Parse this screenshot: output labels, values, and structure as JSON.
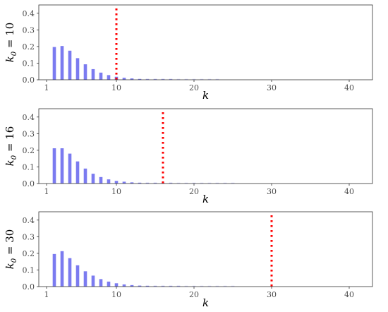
{
  "chart_data": [
    {
      "type": "bar",
      "ylabel": "k0 = 10",
      "ylabel_base": "k",
      "ylabel_sub": "0",
      "ylabel_rest": " = 10",
      "xlabel": "k",
      "xlim": [
        0,
        43
      ],
      "ylim": [
        0,
        0.45
      ],
      "xticks": [
        1,
        10,
        20,
        30,
        40
      ],
      "yticks": [
        0.0,
        0.1,
        0.2,
        0.3,
        0.4
      ],
      "ytick_labels": [
        "0.0",
        "0.1",
        "0.2",
        "0.3",
        "0.4"
      ],
      "cutoff_k": 10,
      "bar_color": "#7b7bf0",
      "cutoff_color": "#ff0000",
      "x": [
        2,
        3,
        4,
        5,
        6,
        7,
        8,
        9,
        10,
        11,
        12,
        13,
        14,
        15,
        16,
        17,
        18,
        19,
        20,
        21,
        22,
        23
      ],
      "values": [
        0.197,
        0.203,
        0.175,
        0.13,
        0.093,
        0.064,
        0.043,
        0.028,
        0.018,
        0.012,
        0.008,
        0.005,
        0.003,
        0.002,
        0.0015,
        0.001,
        0.0007,
        0.0005,
        0.0003,
        0.0002,
        0.00015,
        0.0001
      ],
      "grid": false
    },
    {
      "type": "bar",
      "ylabel": "k0 = 16",
      "ylabel_base": "k",
      "ylabel_sub": "0",
      "ylabel_rest": " = 16",
      "xlabel": "k",
      "xlim": [
        0,
        43
      ],
      "ylim": [
        0,
        0.45
      ],
      "xticks": [
        1,
        10,
        20,
        30,
        40
      ],
      "yticks": [
        0.0,
        0.1,
        0.2,
        0.3,
        0.4
      ],
      "ytick_labels": [
        "0.0",
        "0.1",
        "0.2",
        "0.3",
        "0.4"
      ],
      "cutoff_k": 16,
      "bar_color": "#7b7bf0",
      "cutoff_color": "#ff0000",
      "x": [
        2,
        3,
        4,
        5,
        6,
        7,
        8,
        9,
        10,
        11,
        12,
        13,
        14,
        15,
        16,
        17,
        18,
        19,
        20,
        21,
        22,
        23,
        24,
        25
      ],
      "values": [
        0.212,
        0.212,
        0.18,
        0.133,
        0.09,
        0.059,
        0.039,
        0.025,
        0.016,
        0.011,
        0.007,
        0.005,
        0.003,
        0.002,
        0.0015,
        0.001,
        0.0008,
        0.0006,
        0.0004,
        0.0003,
        0.0002,
        0.00015,
        0.0001,
        0.0001
      ],
      "grid": false
    },
    {
      "type": "bar",
      "ylabel": "k0 = 30",
      "ylabel_base": "k",
      "ylabel_sub": "0",
      "ylabel_rest": " = 30",
      "xlabel": "k",
      "xlim": [
        0,
        43
      ],
      "ylim": [
        0,
        0.45
      ],
      "xticks": [
        1,
        10,
        20,
        30,
        40
      ],
      "yticks": [
        0.0,
        0.1,
        0.2,
        0.3,
        0.4
      ],
      "ytick_labels": [
        "0.0",
        "0.1",
        "0.2",
        "0.3",
        "0.4"
      ],
      "cutoff_k": 30,
      "bar_color": "#7b7bf0",
      "cutoff_color": "#ff0000",
      "x": [
        2,
        3,
        4,
        5,
        6,
        7,
        8,
        9,
        10,
        11,
        12,
        13,
        14,
        15,
        16,
        17,
        18,
        19,
        20,
        21,
        22,
        23,
        24,
        25
      ],
      "values": [
        0.196,
        0.213,
        0.171,
        0.128,
        0.092,
        0.066,
        0.045,
        0.03,
        0.02,
        0.013,
        0.009,
        0.006,
        0.004,
        0.003,
        0.002,
        0.0015,
        0.001,
        0.0008,
        0.0006,
        0.0004,
        0.0003,
        0.0002,
        0.00015,
        0.0001
      ],
      "grid": false
    }
  ]
}
